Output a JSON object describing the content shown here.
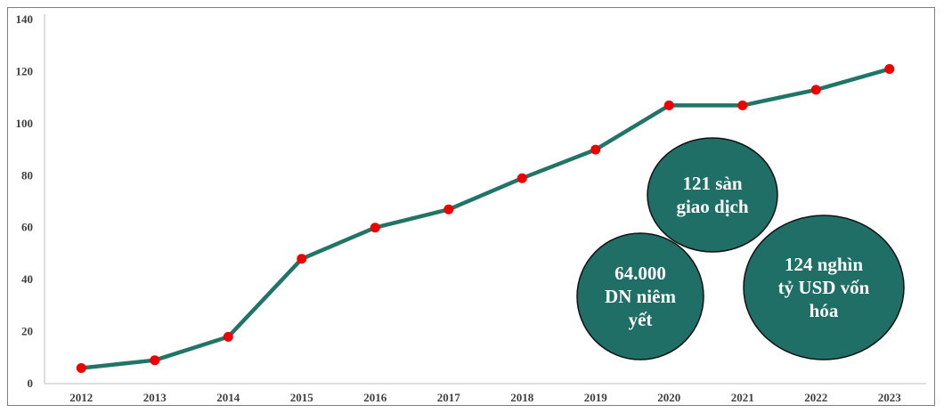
{
  "chart_data": {
    "type": "line",
    "x": [
      "2012",
      "2013",
      "2014",
      "2015",
      "2016",
      "2017",
      "2018",
      "2019",
      "2020",
      "2021",
      "2022",
      "2023"
    ],
    "values": [
      6,
      9,
      18,
      48,
      60,
      67,
      79,
      90,
      107,
      107,
      113,
      121
    ],
    "ylim": [
      0,
      140
    ],
    "yticks": [
      0,
      20,
      40,
      60,
      80,
      100,
      120,
      140
    ],
    "grid": false,
    "line_color": "#217567",
    "marker_color": "#ee0000",
    "annotations": [
      {
        "lines": [
          "121 sàn",
          "giao dịch"
        ]
      },
      {
        "lines": [
          "64.000",
          "DN niêm",
          "yết"
        ]
      },
      {
        "lines": [
          "124 nghìn",
          "tỷ USD vốn",
          "hóa"
        ]
      }
    ],
    "annotation_fill": "#1f6f66"
  }
}
